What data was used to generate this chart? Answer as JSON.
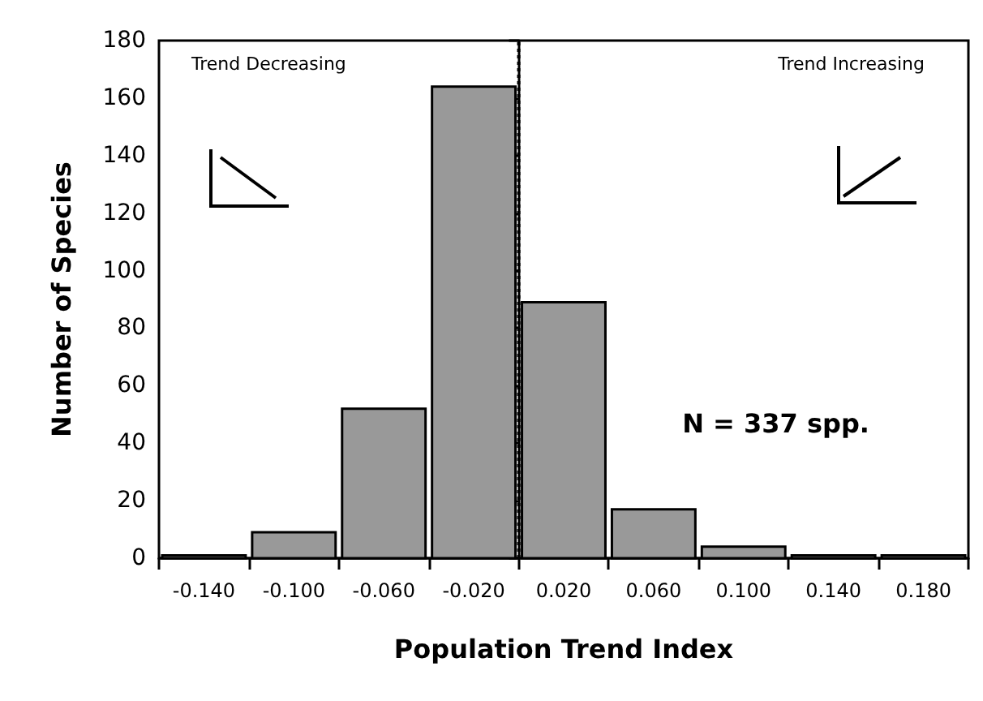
{
  "chart_data": {
    "type": "histogram",
    "xlabel": "Population Trend Index",
    "ylabel": "Number of Species",
    "bins": [
      -0.16,
      -0.12,
      -0.08,
      -0.04,
      0,
      0.04,
      0.08,
      0.12,
      0.16,
      0.2
    ],
    "values": [
      1,
      9,
      52,
      164,
      89,
      17,
      4,
      1,
      1
    ],
    "color": "#999999",
    "xlim": [
      -0.16,
      0.2
    ],
    "xticks": [
      {
        "value": -0.16,
        "label": null
      },
      {
        "value": -0.14,
        "label": "-0.140"
      },
      {
        "value": -0.12,
        "label": null
      },
      {
        "value": -0.1,
        "label": "-0.100"
      },
      {
        "value": -0.08,
        "label": null
      },
      {
        "value": -0.06,
        "label": "-0.060"
      },
      {
        "value": -0.04,
        "label": null
      },
      {
        "value": -0.02,
        "label": "-0.020"
      },
      {
        "value": 0,
        "label": null
      },
      {
        "value": 0.02,
        "label": "0.020"
      },
      {
        "value": 0.04,
        "label": null
      },
      {
        "value": 0.06,
        "label": "0.060"
      },
      {
        "value": 0.08,
        "label": null
      },
      {
        "value": 0.1,
        "label": "0.100"
      },
      {
        "value": 0.12,
        "label": null
      },
      {
        "value": 0.14,
        "label": "0.140"
      },
      {
        "value": 0.16,
        "label": null
      },
      {
        "value": 0.18,
        "label": "0.180"
      },
      {
        "value": 0.2,
        "label": null
      }
    ],
    "ylim": [
      0,
      180
    ],
    "yticks": [
      0,
      20,
      40,
      60,
      80,
      100,
      120,
      140,
      160,
      180
    ],
    "grid": false,
    "ref_lines": [
      {
        "axis": "x",
        "value": 0,
        "line_style": "dotted",
        "color": "#000000"
      }
    ],
    "annotations": [
      "Trend Decreasing",
      "Trend Increasing",
      "N = 337 spp."
    ]
  }
}
